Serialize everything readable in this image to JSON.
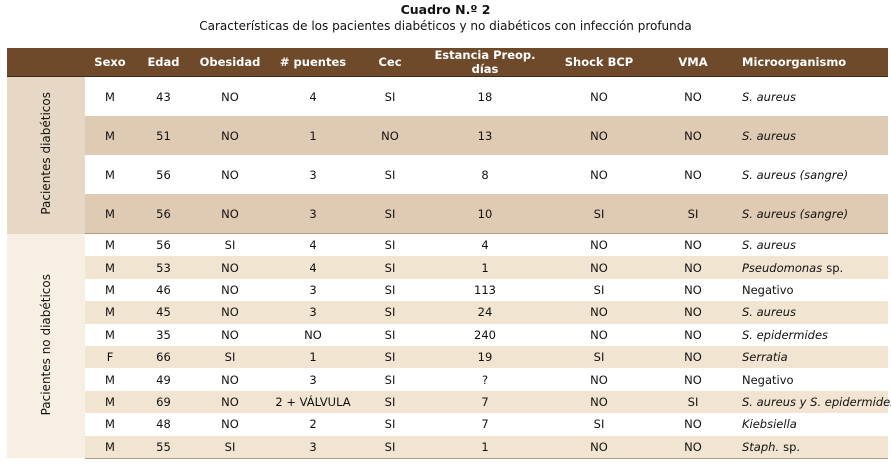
{
  "header": {
    "title": "Cuadro N.º 2",
    "subtitle": "Características de los pacientes diabéticos y no diabéticos con infección profunda"
  },
  "table": {
    "columns": [
      "Sexo",
      "Edad",
      "Obesidad",
      "# puentes",
      "Cec",
      "Estancia Preop. días",
      "Shock BCP",
      "VMA",
      "Microorganismo"
    ],
    "groups": [
      {
        "label": "Pacientes diabéticos",
        "rows": [
          [
            "M",
            43,
            "NO",
            4,
            "SI",
            18,
            "NO",
            "NO",
            [
              {
                "text": "S. aureus",
                "italic": true
              }
            ]
          ],
          [
            "M",
            51,
            "NO",
            1,
            "NO",
            13,
            "NO",
            "NO",
            [
              {
                "text": "S. aureus",
                "italic": true
              }
            ]
          ],
          [
            "M",
            56,
            "NO",
            3,
            "SI",
            8,
            "NO",
            "NO",
            [
              {
                "text": "S. aureus (sangre)",
                "italic": true
              }
            ]
          ],
          [
            "M",
            56,
            "NO",
            3,
            "SI",
            10,
            "SI",
            "SI",
            [
              {
                "text": "S. aureus (sangre)",
                "italic": true
              }
            ]
          ]
        ]
      },
      {
        "label": "Pacientes no diabéticos",
        "rows": [
          [
            "M",
            56,
            "SI",
            4,
            "SI",
            4,
            "NO",
            "NO",
            [
              {
                "text": "S. aureus",
                "italic": true
              }
            ]
          ],
          [
            "M",
            53,
            "NO",
            4,
            "SI",
            1,
            "NO",
            "NO",
            [
              {
                "text": "Pseudomonas",
                "italic": true
              },
              {
                "text": "sp.",
                "italic": false
              }
            ]
          ],
          [
            "M",
            46,
            "NO",
            3,
            "SI",
            113,
            "SI",
            "NO",
            [
              {
                "text": "Negativo",
                "italic": false
              }
            ]
          ],
          [
            "M",
            45,
            "NO",
            3,
            "SI",
            24,
            "NO",
            "NO",
            [
              {
                "text": "S. aureus",
                "italic": true
              }
            ]
          ],
          [
            "M",
            35,
            "NO",
            "NO",
            "SI",
            240,
            "NO",
            "NO",
            [
              {
                "text": "S. epidermides",
                "italic": true
              }
            ]
          ],
          [
            "F",
            66,
            "SI",
            1,
            "SI",
            19,
            "SI",
            "NO",
            [
              {
                "text": "Serratia",
                "italic": true
              }
            ]
          ],
          [
            "M",
            49,
            "NO",
            3,
            "SI",
            "?",
            "NO",
            "NO",
            [
              {
                "text": "Negativo",
                "italic": false
              }
            ]
          ],
          [
            "M",
            69,
            "NO",
            "2 + VÁLVULA",
            "SI",
            7,
            "NO",
            "SI",
            [
              {
                "text": "S. aureus y S. epidermides",
                "italic": true
              }
            ]
          ],
          [
            "M",
            48,
            "NO",
            2,
            "SI",
            7,
            "SI",
            "NO",
            [
              {
                "text": "Kiebsiella",
                "italic": true
              }
            ]
          ],
          [
            "M",
            55,
            "SI",
            3,
            "SI",
            1,
            "NO",
            "NO",
            [
              {
                "text": "Staph.",
                "italic": true
              },
              {
                "text": "sp.",
                "italic": false
              }
            ]
          ]
        ]
      }
    ]
  }
}
